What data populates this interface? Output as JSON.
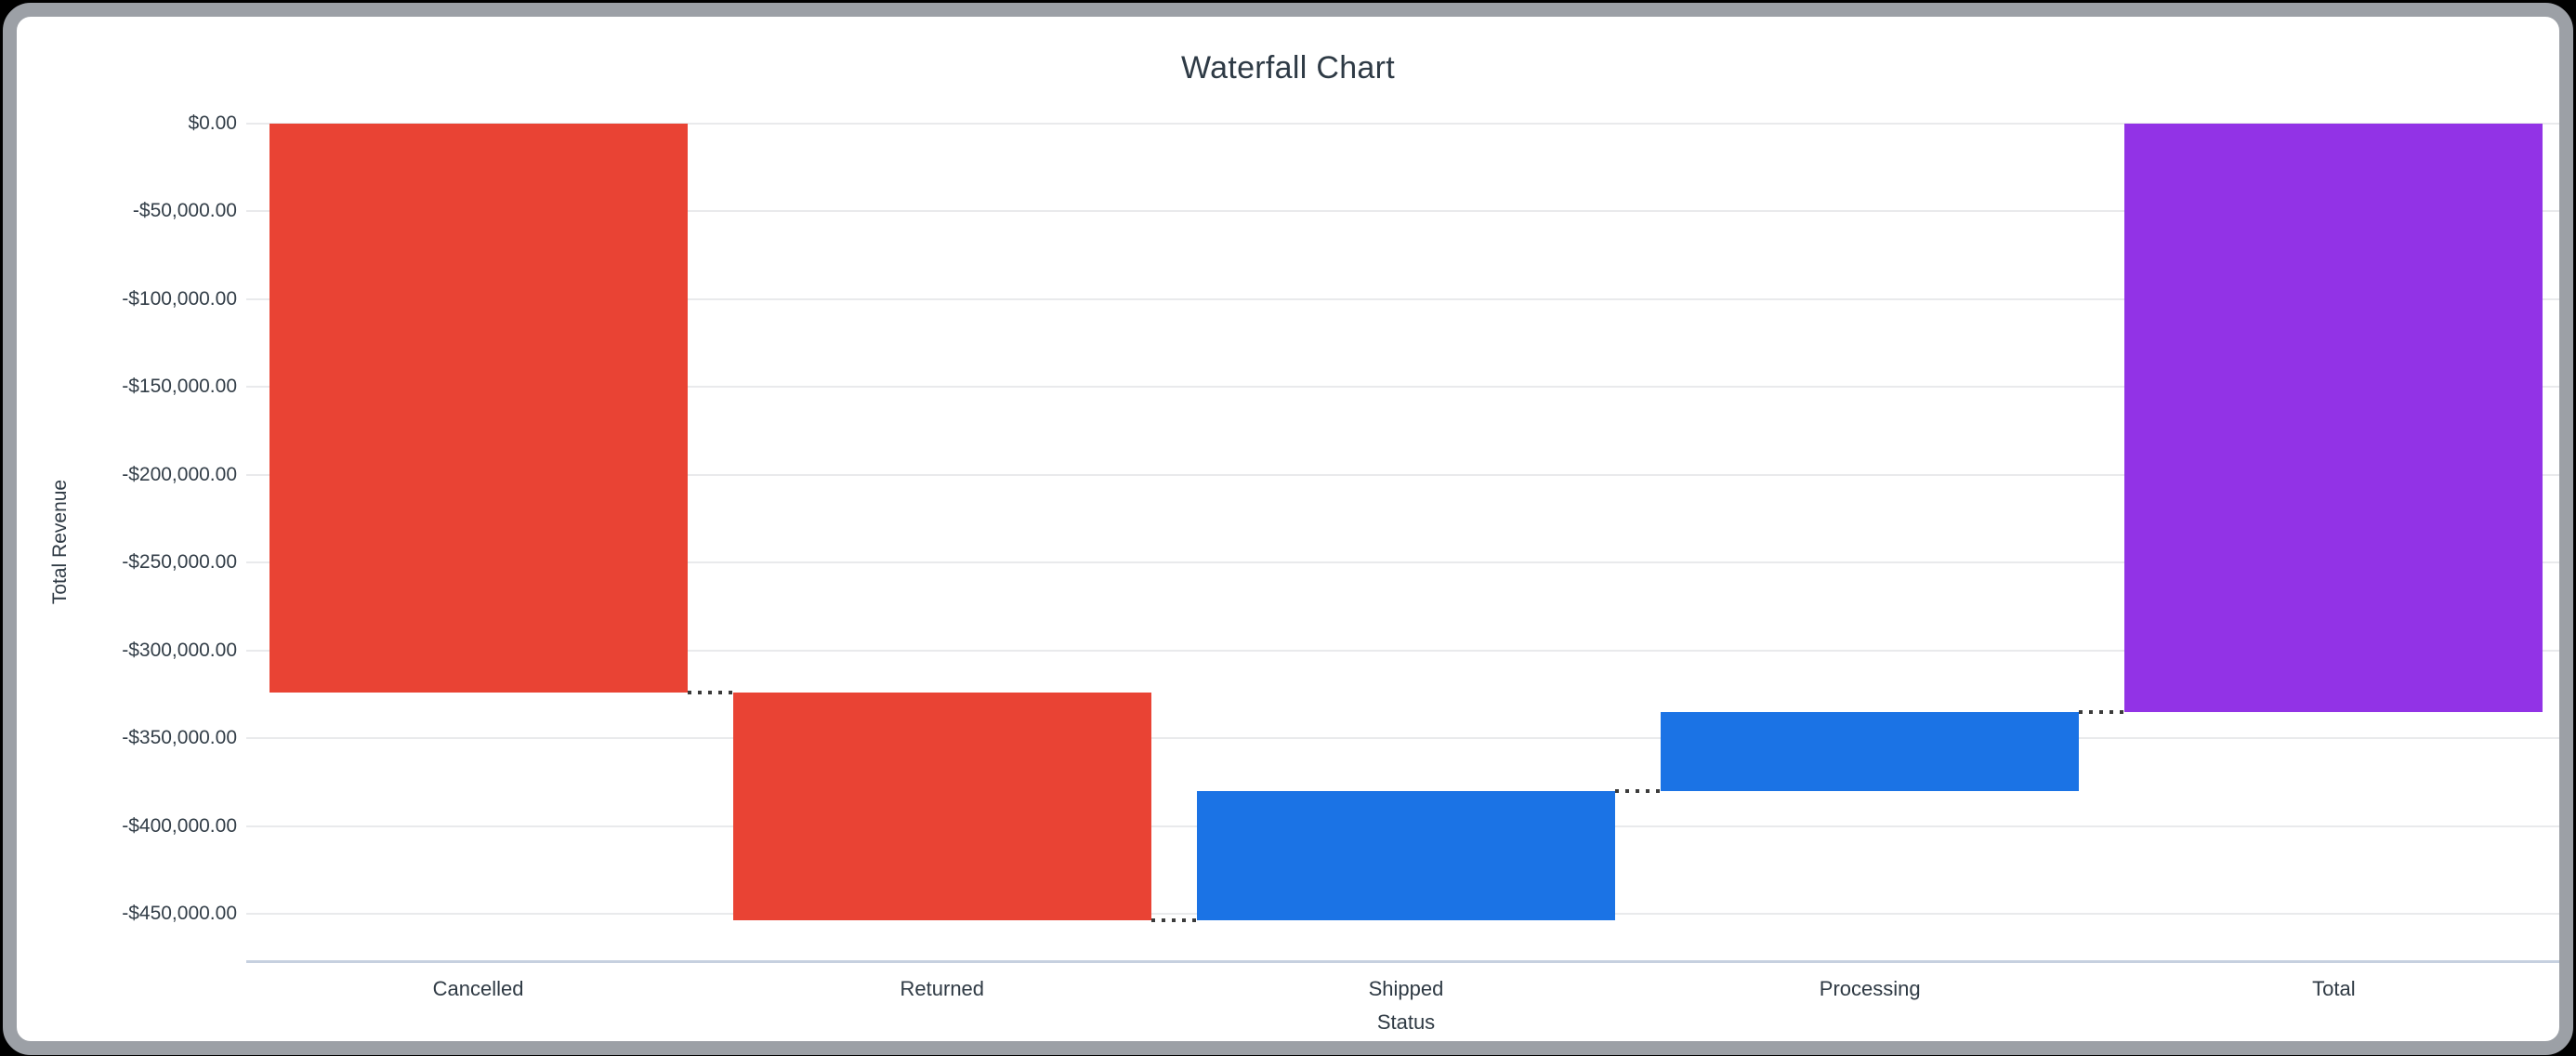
{
  "frame": {
    "outer_background": "#000000",
    "border_color": "#9CA0A6",
    "background": "#FFFFFF"
  },
  "chart_data": {
    "type": "bar",
    "subtype": "waterfall",
    "title": "Waterfall Chart",
    "xlabel": "Status",
    "ylabel": "Total Revenue",
    "categories": [
      "Cancelled",
      "Returned",
      "Shipped",
      "Processing",
      "Total"
    ],
    "bars": [
      {
        "category": "Cancelled",
        "start": 0,
        "end": -324000,
        "value": -324000,
        "role": "negative"
      },
      {
        "category": "Returned",
        "start": -324000,
        "end": -453700,
        "value": -129700,
        "role": "negative"
      },
      {
        "category": "Shipped",
        "start": -453700,
        "end": -380100,
        "value": 73600,
        "role": "positive"
      },
      {
        "category": "Processing",
        "start": -380100,
        "end": -335100,
        "value": 45000,
        "role": "positive"
      },
      {
        "category": "Total",
        "start": 0,
        "end": -335100,
        "value": -335100,
        "role": "total"
      }
    ],
    "y_ticks": [
      {
        "label": "$0.00",
        "value": 0
      },
      {
        "label": "-$50,000.00",
        "value": -50000
      },
      {
        "label": "-$100,000.00",
        "value": -100000
      },
      {
        "label": "-$150,000.00",
        "value": -150000
      },
      {
        "label": "-$200,000.00",
        "value": -200000
      },
      {
        "label": "-$250,000.00",
        "value": -250000
      },
      {
        "label": "-$300,000.00",
        "value": -300000
      },
      {
        "label": "-$350,000.00",
        "value": -350000
      },
      {
        "label": "-$400,000.00",
        "value": -400000
      },
      {
        "label": "-$450,000.00",
        "value": -450000
      }
    ],
    "ylim": [
      -477000,
      0
    ],
    "grid": true,
    "legend": false,
    "colors": {
      "negative": "#E94334",
      "positive": "#1B73E5",
      "total": "#9233E6"
    },
    "connector_color": "#3B3B3B",
    "gridline_color": "#E9EAEC",
    "axis_line_color": "#C6D0DF",
    "title_color": "#2E3A45",
    "label_color": "#2F3A44"
  }
}
